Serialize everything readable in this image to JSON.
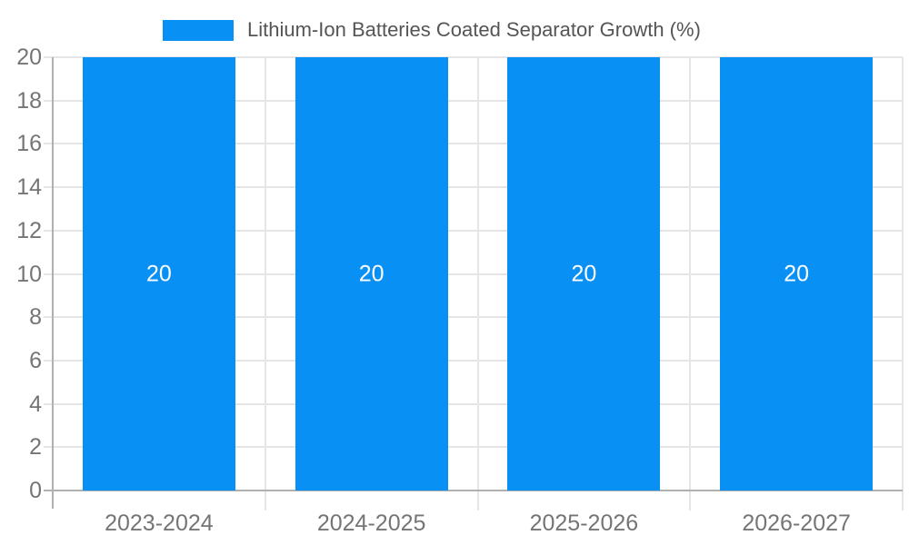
{
  "colors": {
    "background": "#ffffff",
    "bar": "#0990f5",
    "grid": "#e5e5e7",
    "axis": "#b0b0b0",
    "tick_label": "#757575",
    "title": "#555557",
    "bar_label": "#ffffff"
  },
  "chart_data": {
    "type": "bar",
    "title": "Lithium-Ion Batteries Coated Separator Growth (%)",
    "categories": [
      "2023-2024",
      "2024-2025",
      "2025-2026",
      "2026-2027"
    ],
    "values": [
      20,
      20,
      20,
      20
    ],
    "bar_labels": [
      "20",
      "20",
      "20",
      "20"
    ],
    "xlabel": "",
    "ylabel": "",
    "ylim": [
      0,
      20
    ],
    "yticks": [
      0,
      2,
      4,
      6,
      8,
      10,
      12,
      14,
      16,
      18,
      20
    ],
    "grid": true,
    "legend_position": "top-center",
    "legend_swatch_color": "#0990f5"
  }
}
